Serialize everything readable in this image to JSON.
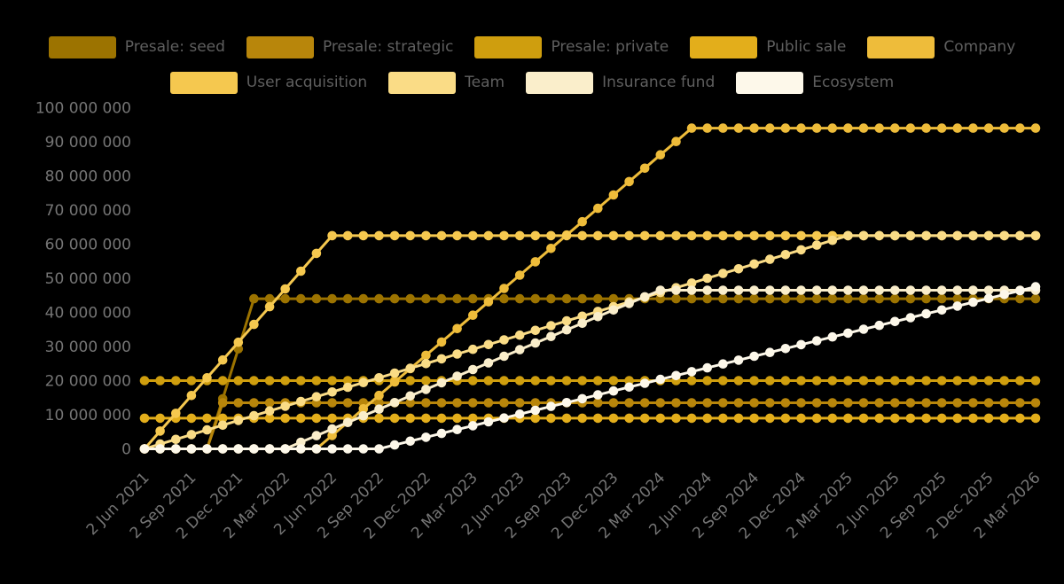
{
  "chart_data": {
    "type": "line",
    "title": "",
    "background_color": "#000000",
    "axis_text_color": "#757575",
    "legend_text_color": "#5f5f5f",
    "grid": false,
    "legend_position": "top",
    "marker": "circle",
    "point_interval": "monthly",
    "n_points": 58,
    "x_axis": {
      "tick_every_points": 3,
      "tick_labels": [
        "2 Jun 2021",
        "2 Sep 2021",
        "2 Dec 2021",
        "2 Mar 2022",
        "2 Jun 2022",
        "2 Sep 2022",
        "2 Dec 2022",
        "2 Mar 2023",
        "2 Jun 2023",
        "2 Sep 2023",
        "2 Dec 2023",
        "2 Mar 2024",
        "2 Jun 2024",
        "2 Sep 2024",
        "2 Dec 2024",
        "2 Mar 2025",
        "2 Jun 2025",
        "2 Sep 2025",
        "2 Dec 2025",
        "2 Mar 2026"
      ]
    },
    "y_axis": {
      "unit": "tokens",
      "ylim_millions": [
        0,
        100
      ],
      "tick_values_millions": [
        0,
        10,
        20,
        30,
        40,
        50,
        60,
        70,
        80,
        90,
        100
      ],
      "tick_labels": [
        "0",
        "10 000 000",
        "20 000 000",
        "30 000 000",
        "40 000 000",
        "50 000 000",
        "60 000 000",
        "70 000 000",
        "80 000 000",
        "90 000 000",
        "100 000 000"
      ]
    },
    "series": [
      {
        "name": "Presale: seed",
        "color": "#9c7300",
        "values_millions": [
          0,
          0,
          0,
          0,
          0,
          14.67,
          29.33,
          44,
          44,
          44,
          44,
          44,
          44,
          44,
          44,
          44,
          44,
          44,
          44,
          44,
          44,
          44,
          44,
          44,
          44,
          44,
          44,
          44,
          44,
          44,
          44,
          44,
          44,
          44,
          44,
          44,
          44,
          44,
          44,
          44,
          44,
          44,
          44,
          44,
          44,
          44,
          44,
          44,
          44,
          44,
          44,
          44,
          44,
          44,
          44,
          44,
          44,
          44
        ]
      },
      {
        "name": "Presale: strategic",
        "color": "#b8860b",
        "values_millions": [
          0,
          0,
          0,
          0,
          0,
          13.5,
          13.5,
          13.5,
          13.5,
          13.5,
          13.5,
          13.5,
          13.5,
          13.5,
          13.5,
          13.5,
          13.5,
          13.5,
          13.5,
          13.5,
          13.5,
          13.5,
          13.5,
          13.5,
          13.5,
          13.5,
          13.5,
          13.5,
          13.5,
          13.5,
          13.5,
          13.5,
          13.5,
          13.5,
          13.5,
          13.5,
          13.5,
          13.5,
          13.5,
          13.5,
          13.5,
          13.5,
          13.5,
          13.5,
          13.5,
          13.5,
          13.5,
          13.5,
          13.5,
          13.5,
          13.5,
          13.5,
          13.5,
          13.5,
          13.5,
          13.5,
          13.5,
          13.5
        ]
      },
      {
        "name": "Presale: private",
        "color": "#cf9e0e",
        "values_millions": [
          20,
          20,
          20,
          20,
          20,
          20,
          20,
          20,
          20,
          20,
          20,
          20,
          20,
          20,
          20,
          20,
          20,
          20,
          20,
          20,
          20,
          20,
          20,
          20,
          20,
          20,
          20,
          20,
          20,
          20,
          20,
          20,
          20,
          20,
          20,
          20,
          20,
          20,
          20,
          20,
          20,
          20,
          20,
          20,
          20,
          20,
          20,
          20,
          20,
          20,
          20,
          20,
          20,
          20,
          20,
          20,
          20,
          20
        ]
      },
      {
        "name": "Public sale",
        "color": "#e3ae1b",
        "values_millions": [
          9,
          9,
          9,
          9,
          9,
          9,
          9,
          9,
          9,
          9,
          9,
          9,
          9,
          9,
          9,
          9,
          9,
          9,
          9,
          9,
          9,
          9,
          9,
          9,
          9,
          9,
          9,
          9,
          9,
          9,
          9,
          9,
          9,
          9,
          9,
          9,
          9,
          9,
          9,
          9,
          9,
          9,
          9,
          9,
          9,
          9,
          9,
          9,
          9,
          9,
          9,
          9,
          9,
          9,
          9,
          9,
          9,
          9
        ]
      },
      {
        "name": "Company",
        "color": "#eebc3a",
        "values_millions": [
          0,
          0,
          0,
          0,
          0,
          0,
          0,
          0,
          0,
          0,
          0,
          0,
          3.92,
          7.83,
          11.75,
          15.67,
          19.58,
          23.5,
          27.42,
          31.33,
          35.25,
          39.17,
          43.08,
          47,
          50.92,
          54.83,
          58.75,
          62.67,
          66.58,
          70.5,
          74.42,
          78.33,
          82.25,
          86.17,
          90.08,
          94,
          94,
          94,
          94,
          94,
          94,
          94,
          94,
          94,
          94,
          94,
          94,
          94,
          94,
          94,
          94,
          94,
          94,
          94,
          94,
          94,
          94,
          94
        ]
      },
      {
        "name": "User acquisition",
        "color": "#f5c84f",
        "values_millions": [
          0,
          5.21,
          10.42,
          15.63,
          20.83,
          26.04,
          31.25,
          36.46,
          41.67,
          46.88,
          52.08,
          57.29,
          62.5,
          62.5,
          62.5,
          62.5,
          62.5,
          62.5,
          62.5,
          62.5,
          62.5,
          62.5,
          62.5,
          62.5,
          62.5,
          62.5,
          62.5,
          62.5,
          62.5,
          62.5,
          62.5,
          62.5,
          62.5,
          62.5,
          62.5,
          62.5,
          62.5,
          62.5,
          62.5,
          62.5,
          62.5,
          62.5,
          62.5,
          62.5,
          62.5,
          62.5,
          62.5,
          62.5,
          62.5,
          62.5,
          62.5,
          62.5,
          62.5,
          62.5,
          62.5,
          62.5,
          62.5,
          62.5
        ]
      },
      {
        "name": "Team",
        "color": "#fadc86",
        "values_millions": [
          0,
          1.39,
          2.78,
          4.17,
          5.56,
          6.94,
          8.33,
          9.72,
          11.11,
          12.5,
          13.89,
          15.28,
          16.67,
          18.06,
          19.44,
          20.83,
          22.22,
          23.61,
          25,
          26.39,
          27.78,
          29.17,
          30.56,
          31.94,
          33.33,
          34.72,
          36.11,
          37.5,
          38.89,
          40.28,
          41.67,
          43.06,
          44.44,
          45.83,
          47.22,
          48.61,
          50,
          51.39,
          52.78,
          54.17,
          55.56,
          56.94,
          58.33,
          59.72,
          61.11,
          62.5,
          62.5,
          62.5,
          62.5,
          62.5,
          62.5,
          62.5,
          62.5,
          62.5,
          62.5,
          62.5,
          62.5,
          62.5
        ]
      },
      {
        "name": "Insurance fund",
        "color": "#faeecb",
        "values_millions": [
          0,
          0,
          0,
          0,
          0,
          0,
          0,
          0,
          0,
          0,
          1.94,
          3.88,
          5.81,
          7.75,
          9.69,
          11.63,
          13.56,
          15.5,
          17.44,
          19.38,
          21.31,
          23.25,
          25.19,
          27.13,
          29.06,
          31,
          32.94,
          34.88,
          36.81,
          38.75,
          40.69,
          42.63,
          44.56,
          46.5,
          46.5,
          46.5,
          46.5,
          46.5,
          46.5,
          46.5,
          46.5,
          46.5,
          46.5,
          46.5,
          46.5,
          46.5,
          46.5,
          46.5,
          46.5,
          46.5,
          46.5,
          46.5,
          46.5,
          46.5,
          46.5,
          46.5,
          46.5,
          46.5
        ]
      },
      {
        "name": "Ecosystem",
        "color": "#fdf8ea",
        "values_millions": [
          0,
          0,
          0,
          0,
          0,
          0,
          0,
          0,
          0,
          0,
          0,
          0,
          0,
          0,
          0,
          0,
          1.13,
          2.26,
          3.39,
          4.52,
          5.65,
          6.79,
          7.92,
          9.05,
          10.18,
          11.31,
          12.44,
          13.57,
          14.7,
          15.83,
          16.96,
          18.1,
          19.23,
          20.36,
          21.49,
          22.62,
          23.75,
          24.88,
          26.01,
          27.14,
          28.27,
          29.4,
          30.54,
          31.67,
          32.8,
          33.93,
          35.06,
          36.19,
          37.32,
          38.45,
          39.58,
          40.71,
          41.85,
          42.98,
          44.11,
          45.24,
          46.37,
          47.5
        ]
      }
    ]
  }
}
